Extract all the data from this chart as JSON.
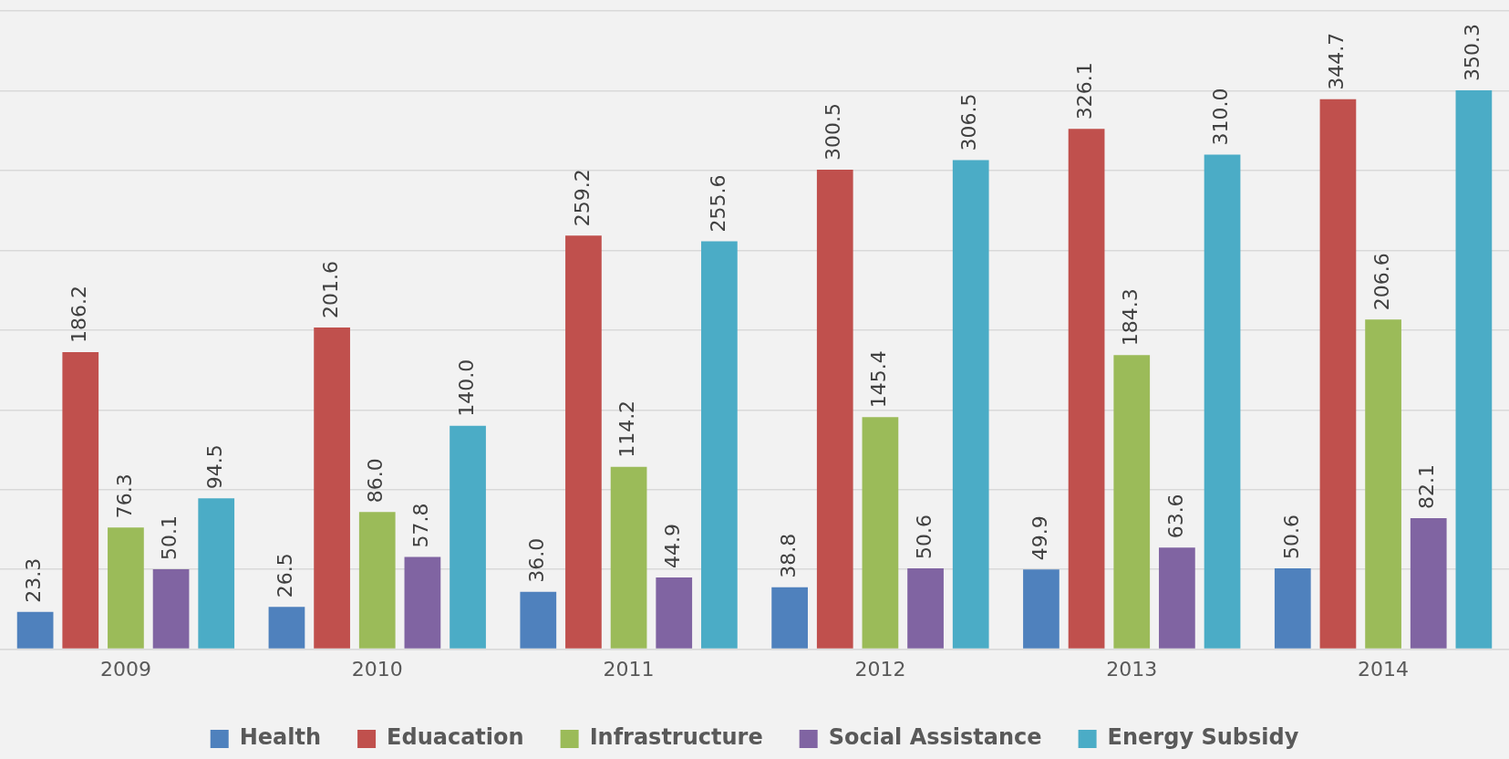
{
  "chart_data": {
    "type": "bar",
    "categories": [
      "2009",
      "2010",
      "2011",
      "2012",
      "2013",
      "2014"
    ],
    "series": [
      {
        "name": "Health",
        "color": "#4f81bd",
        "values": [
          23.3,
          26.5,
          36.0,
          38.8,
          49.9,
          50.6
        ],
        "value_labels": [
          "23.3",
          "26.5",
          "36.0",
          "38.8",
          "49.9",
          "50.6"
        ]
      },
      {
        "name": "Eduacation",
        "color": "#c0504d",
        "values": [
          186.2,
          201.6,
          259.2,
          300.5,
          326.1,
          344.7
        ],
        "value_labels": [
          "186.2",
          "201.6",
          "259.2",
          "300.5",
          "326.1",
          "344.7"
        ]
      },
      {
        "name": "Infrastructure",
        "color": "#9bbb59",
        "values": [
          76.3,
          86.0,
          114.2,
          145.4,
          184.3,
          206.6
        ],
        "value_labels": [
          "76.3",
          "86.0",
          "114.2",
          "145.4",
          "184.3",
          "206.6"
        ]
      },
      {
        "name": "Social Assistance",
        "color": "#8064a2",
        "values": [
          50.1,
          57.8,
          44.9,
          50.6,
          63.6,
          82.1
        ],
        "value_labels": [
          "50.1",
          "57.8",
          "44.9",
          "50.6",
          "63.6",
          "82.1"
        ]
      },
      {
        "name": "Energy Subsidy",
        "color": "#4bacc6",
        "values": [
          94.5,
          140.0,
          255.6,
          306.5,
          310.0,
          350.3
        ],
        "value_labels": [
          "94.5",
          "140.0",
          "255.6",
          "306.5",
          "310.0",
          "350.3"
        ]
      }
    ],
    "ylim": [
      0,
      400
    ],
    "yticks": [
      {
        "value": 0,
        "label": null
      },
      {
        "value": 50,
        "label": null
      },
      {
        "value": 100,
        "label": null
      },
      {
        "value": 150,
        "label": null
      },
      {
        "value": 200,
        "label": null
      },
      {
        "value": 250,
        "label": null
      },
      {
        "value": 300,
        "label": null
      },
      {
        "value": 350,
        "label": null
      },
      {
        "value": 400,
        "label": null
      }
    ],
    "tick_labels": "x",
    "grid": "y",
    "legend": "bottom"
  }
}
